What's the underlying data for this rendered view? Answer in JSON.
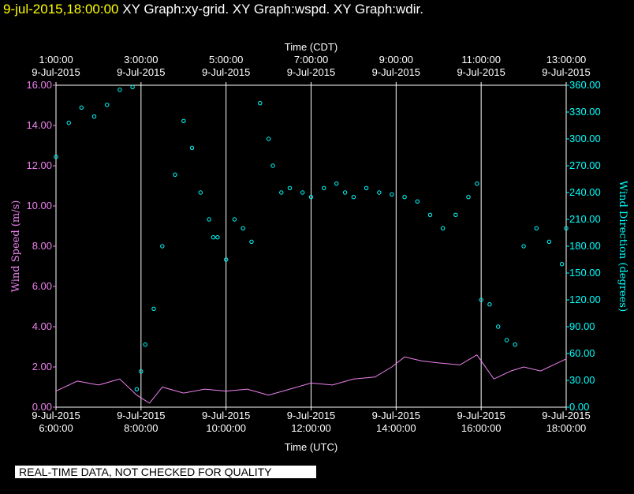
{
  "header": {
    "timestamp": "9-jul-2015,18:00:00",
    "graphs": "XY Graph:xy-grid.  XY Graph:wspd.  XY Graph:wdir."
  },
  "notice": "REAL-TIME DATA, NOT CHECKED FOR QUALITY",
  "colors": {
    "background": "#000000",
    "speed": "#ee82ee",
    "direction": "#00ffff",
    "grid": "#ffffff",
    "timestamp": "#ffff00"
  },
  "chart_data": {
    "type": "line+scatter",
    "top_axis": {
      "label": "Time (CDT)",
      "ticks": [
        {
          "time": "1:00:00",
          "date": "9-Jul-2015"
        },
        {
          "time": "3:00:00",
          "date": "9-Jul-2015"
        },
        {
          "time": "5:00:00",
          "date": "9-Jul-2015"
        },
        {
          "time": "7:00:00",
          "date": "9-Jul-2015"
        },
        {
          "time": "9:00:00",
          "date": "9-Jul-2015"
        },
        {
          "time": "11:00:00",
          "date": "9-Jul-2015"
        },
        {
          "time": "13:00:00",
          "date": "9-Jul-2015"
        }
      ]
    },
    "bottom_axis": {
      "label": "Time (UTC)",
      "ticks": [
        {
          "date": "9-Jul-2015",
          "time": "6:00:00"
        },
        {
          "date": "9-Jul-2015",
          "time": "8:00:00"
        },
        {
          "date": "9-Jul-2015",
          "time": "10:00:00"
        },
        {
          "date": "9-Jul-2015",
          "time": "12:00:00"
        },
        {
          "date": "9-Jul-2015",
          "time": "14:00:00"
        },
        {
          "date": "9-Jul-2015",
          "time": "16:00:00"
        },
        {
          "date": "9-Jul-2015",
          "time": "18:00:00"
        }
      ],
      "xlim": [
        "2015-07-09 06:00",
        "2015-07-09 18:00"
      ]
    },
    "left_axis": {
      "label": "Wind Speed (m/s)",
      "ylim": [
        0,
        16
      ],
      "ticks": [
        "0.00",
        "2.00",
        "4.00",
        "6.00",
        "8.00",
        "10.00",
        "12.00",
        "14.00",
        "16.00"
      ]
    },
    "right_axis": {
      "label": "Wind Direction (degrees)",
      "ylim": [
        0,
        360
      ],
      "ticks": [
        "0.00",
        "30.00",
        "60.00",
        "90.00",
        "120.00",
        "150.00",
        "180.00",
        "210.00",
        "240.00",
        "270.00",
        "300.00",
        "330.00",
        "360.00"
      ]
    },
    "grid": "vertical lines at each bottom-axis tick",
    "wind_speed_utc_hours": [
      6.0,
      6.5,
      7.0,
      7.5,
      7.9,
      8.2,
      8.5,
      9.0,
      9.5,
      10.0,
      10.5,
      11.0,
      11.5,
      12.0,
      12.5,
      13.0,
      13.5,
      13.9,
      14.2,
      14.6,
      15.0,
      15.5,
      15.9,
      16.3,
      16.7,
      17.0,
      17.4,
      18.0
    ],
    "wind_speed_ms": [
      0.8,
      1.3,
      1.1,
      1.4,
      0.6,
      0.2,
      1.0,
      0.7,
      0.9,
      0.8,
      0.9,
      0.6,
      0.9,
      1.2,
      1.1,
      1.4,
      1.5,
      2.0,
      2.5,
      2.3,
      2.2,
      2.1,
      2.6,
      1.4,
      1.8,
      2.0,
      1.8,
      2.4
    ],
    "wind_direction_utc_hours": [
      6.0,
      6.3,
      6.6,
      6.9,
      7.2,
      7.5,
      7.8,
      7.9,
      8.0,
      8.1,
      8.3,
      8.5,
      8.8,
      9.0,
      9.2,
      9.4,
      9.6,
      9.7,
      9.8,
      10.0,
      10.2,
      10.4,
      10.6,
      10.8,
      11.0,
      11.1,
      11.3,
      11.5,
      11.8,
      12.0,
      12.3,
      12.6,
      12.8,
      13.0,
      13.3,
      13.6,
      13.9,
      14.2,
      14.5,
      14.8,
      15.1,
      15.4,
      15.7,
      15.9,
      16.0,
      16.2,
      16.4,
      16.6,
      16.8,
      17.0,
      17.3,
      17.6,
      17.9,
      18.0
    ],
    "wind_direction_deg": [
      280,
      318,
      335,
      325,
      338,
      355,
      358,
      20,
      40,
      70,
      110,
      180,
      260,
      320,
      290,
      240,
      210,
      190,
      190,
      165,
      210,
      200,
      185,
      340,
      300,
      270,
      240,
      245,
      240,
      235,
      245,
      250,
      240,
      235,
      245,
      240,
      238,
      235,
      230,
      215,
      200,
      215,
      235,
      250,
      120,
      115,
      90,
      75,
      70,
      180,
      200,
      185,
      160,
      200
    ]
  }
}
